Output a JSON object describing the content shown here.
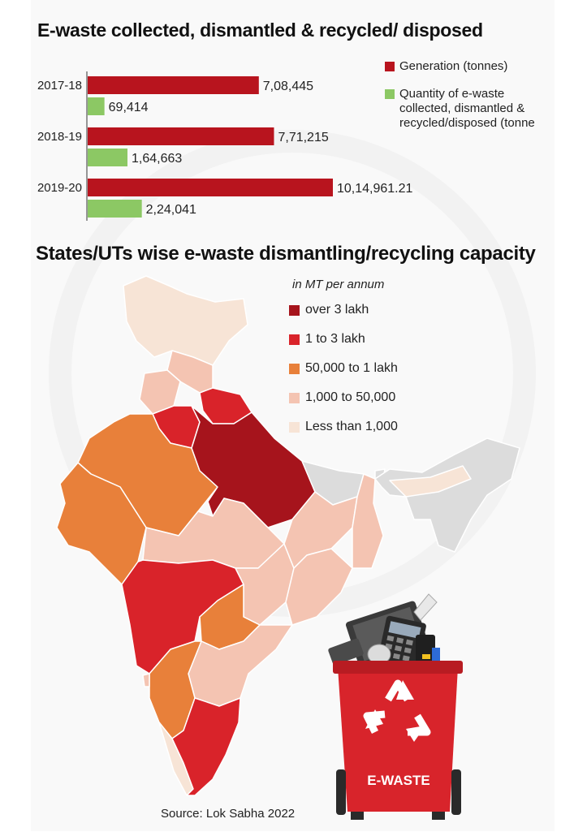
{
  "title": "E-waste collected, dismantled & recycled/ disposed",
  "map_title": "States/UTs wise e-waste dismantling/recycling capacity",
  "legend": {
    "generation": "Generation (tonnes)",
    "collected": "Quantity of e-waste\ncollected, dismantled &\nrecycled/disposed (tonne"
  },
  "map_legend": {
    "unit": "in MT per annum",
    "items": [
      {
        "label": "over 3 lakh",
        "color": "#a6141c"
      },
      {
        "label": "1 to 3 lakh",
        "color": "#d9232a"
      },
      {
        "label": "50,000 to 1 lakh",
        "color": "#e8803a"
      },
      {
        "label": "1,000 to 50,000",
        "color": "#f4c4b2"
      },
      {
        "label": "Less than 1,000",
        "color": "#f7e4d6"
      }
    ]
  },
  "source": "Source: Lok Sabha 2022",
  "bin_label": "E-WASTE",
  "colors": {
    "generation": "#b8141e",
    "collected": "#8cc864",
    "no_data": "#dcdcdc"
  },
  "chart_data": {
    "type": "bar",
    "orientation": "horizontal",
    "categories": [
      "2017-18",
      "2018-19",
      "2019-20"
    ],
    "series": [
      {
        "name": "Generation (tonnes)",
        "values": [
          708445,
          771215,
          1014961.21
        ],
        "labels": [
          "7,08,445",
          "7,71,215",
          "10,14,961.21"
        ]
      },
      {
        "name": "Quantity of e-waste collected, dismantled & recycled/disposed (tonne",
        "values": [
          69414,
          164663,
          224041
        ],
        "labels": [
          "69,414",
          "1,64,663",
          "2,24,041"
        ]
      }
    ],
    "title": "E-waste collected, dismantled & recycled/ disposed",
    "xlabel": "",
    "ylabel": "",
    "xlim": [
      0,
      1014961.21
    ],
    "grid": false,
    "legend_position": "right"
  }
}
